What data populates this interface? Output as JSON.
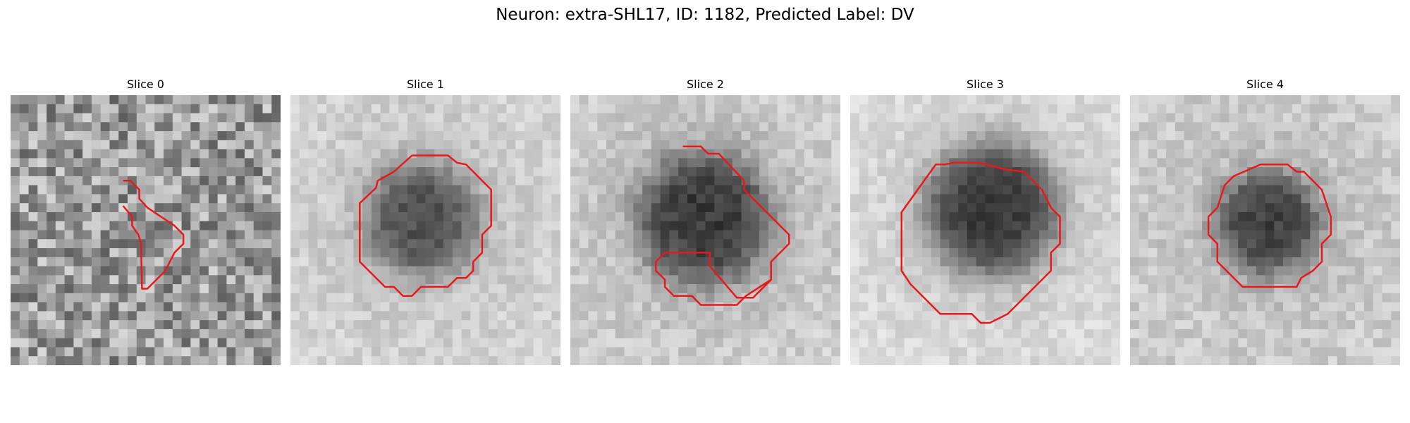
{
  "figure": {
    "title": "Neuron: extra-SHL17, ID: 1182, Predicted Label: DV"
  },
  "panels": [
    {
      "title": "Slice 0"
    },
    {
      "title": "Slice 1"
    },
    {
      "title": "Slice 2"
    },
    {
      "title": "Slice 3"
    },
    {
      "title": "Slice 4"
    }
  ],
  "colors": {
    "contour": "#e8191a",
    "background": "#ffffff"
  }
}
